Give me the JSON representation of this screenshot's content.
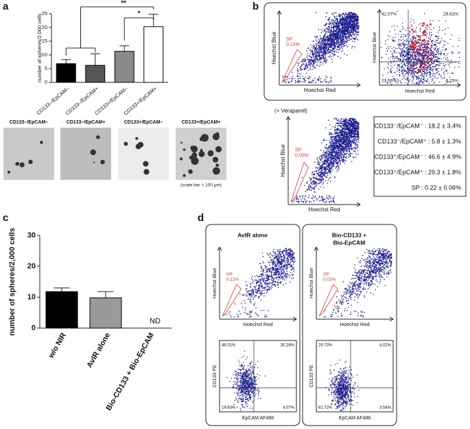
{
  "chart_data": [
    {
      "type": "bar",
      "y_label": "number of spheres/2,000 cells",
      "categories": [
        "CD133–/EpCAM–",
        "CD133–/EpCAM+",
        "CD133+/EpCAM–",
        "CD133+/EpCAM+"
      ],
      "values": [
        6.8,
        6.2,
        11.3,
        20.3
      ],
      "errors": [
        1.5,
        4.2,
        2,
        4.5
      ],
      "colors": [
        "#000000",
        "#555555",
        "#8a8a8a",
        "#ffffff"
      ],
      "ylim": [
        0,
        25
      ],
      "yticks": [
        0,
        5,
        10,
        15,
        20,
        25
      ],
      "annotations": [
        "**",
        "*"
      ]
    },
    {
      "type": "bar",
      "y_label": "number of spheres/2,000 cells",
      "categories": [
        "w/o NIR",
        "AvIR alone",
        "Bio-CD133 + Bio-EpCAM"
      ],
      "values": [
        11.8,
        9.8,
        null
      ],
      "errors": [
        1.2,
        2,
        null
      ],
      "colors": [
        "#000000",
        "#9a9a9a"
      ],
      "ylim": [
        0,
        30
      ],
      "yticks": [
        0,
        10,
        20,
        30
      ],
      "annotations": [
        "ND"
      ]
    }
  ],
  "panel_labels": [
    "a",
    "b",
    "c",
    "d"
  ],
  "micrographs": {
    "titles": [
      "CD133–/EpCAM–",
      "CD133–/EpCAM+",
      "CD133+/EpCAM–",
      "CD133+/EpCAM+"
    ],
    "scale_note": "(scale bar = 100 μm)"
  },
  "panel_b": {
    "sp_plot": {
      "y_label": "Hoechst Blue",
      "x_label": "Hoechst Red",
      "gate_label": "SP",
      "gate_value": "0.15%"
    },
    "quadrant_plot": {
      "y_label": "Hoechst Blue",
      "x_label": "Hoechst Red",
      "quadrants": [
        "42.57%",
        "29.62%",
        "21.56%",
        "6.25%"
      ]
    },
    "verapamil_plot": {
      "title": "(+ Verapamil)",
      "y_label": "Hoechst Blue",
      "x_label": "Hoechst Red",
      "gate_label": "SP",
      "gate_value": "0.00%"
    },
    "stats": [
      "CD133⁻/EpCAM⁻ : 18.2 ± 3.4%",
      "CD133⁻/EpCAM⁺ :  5.8 ± 1.3%",
      "CD133⁺/EpCAM⁻ : 46.6 ± 4.9%",
      "CD133⁺/EpCAM⁺ : 29.3 ± 1.8%",
      "SP : 0.22 ± 0.06%"
    ]
  },
  "panel_d": {
    "columns": [
      {
        "title": [
          "AvIR alone"
        ],
        "sp_plot": {
          "y_label": "Hoechst Blue",
          "x_label": "Hoechst Red",
          "gate_label": "SP",
          "gate_value": "0.12%"
        },
        "quadrant_plot": {
          "y_label": "CD133 PE",
          "x_label": "EpCAM AF488",
          "quadrants": [
            "46.01%",
            "30.28%",
            "19.63%",
            "4.07%"
          ]
        }
      },
      {
        "title": [
          "Bio-CD133 +",
          "Bio-EpCAM"
        ],
        "sp_plot": {
          "y_label": "Hoechst Blue",
          "x_label": "Hoechst Red",
          "gate_label": "SP",
          "gate_value": "0.03%"
        },
        "quadrant_plot": {
          "y_label": "CD133 PE",
          "x_label": "EpCAM AF488",
          "quadrants": [
            "29.73%",
            "4.02%",
            "62.72%",
            "3.54%"
          ]
        }
      }
    ]
  }
}
